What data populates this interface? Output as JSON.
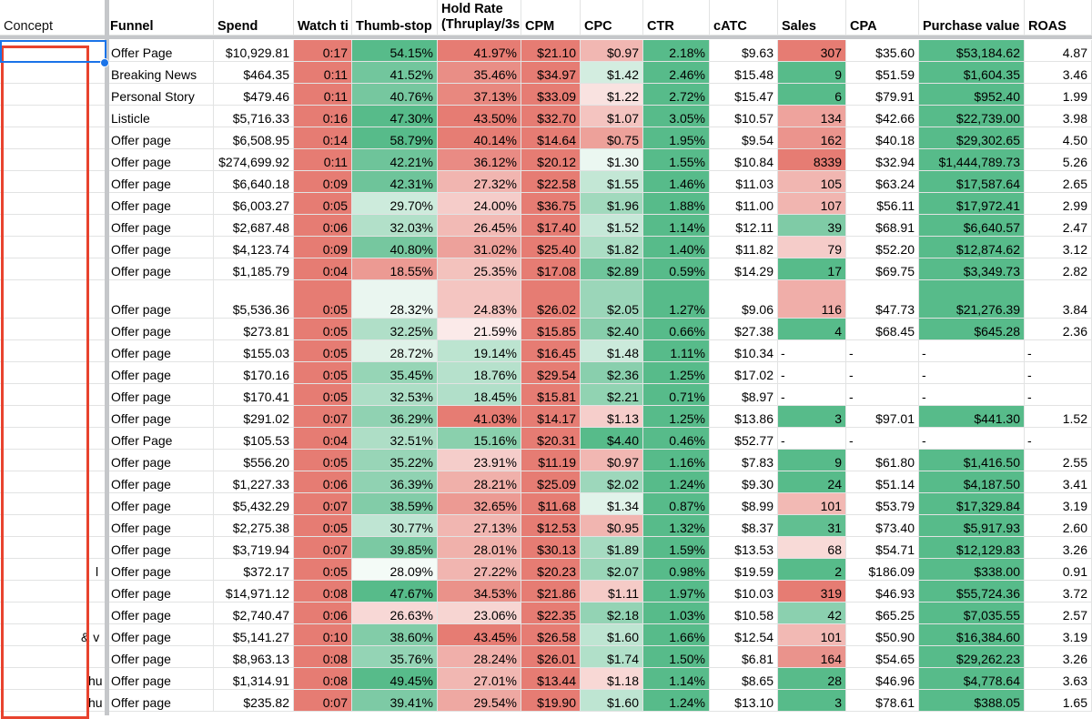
{
  "headers": [
    "Concept",
    "Funnel",
    "Spend",
    "Watch ti",
    "Thumb-stop",
    "Hold Rate\n(Thruplay/3s",
    "CPM",
    "CPC",
    "CTR",
    "cATC",
    "Sales",
    "CPA",
    "Purchase value",
    "ROAS"
  ],
  "concept_fragments": [
    {
      "row": 23,
      "text": "l"
    },
    {
      "row": 26,
      "text": "& v"
    },
    {
      "row": 28,
      "text": "hu"
    },
    {
      "row": 29,
      "text": "hu"
    }
  ],
  "rows": [
    [
      "Offer Page",
      "$10,929.81",
      "0:17",
      "54.15%",
      "41.97%",
      "$21.10",
      "$0.97",
      "2.18%",
      "$9.63",
      "307",
      "$35.60",
      "$53,184.62",
      "4.87"
    ],
    [
      "Breaking News",
      "$464.35",
      "0:11",
      "41.52%",
      "35.46%",
      "$34.97",
      "$1.42",
      "2.46%",
      "$15.48",
      "9",
      "$51.59",
      "$1,604.35",
      "3.46"
    ],
    [
      "Personal Story",
      "$479.46",
      "0:11",
      "40.76%",
      "37.13%",
      "$33.09",
      "$1.22",
      "2.72%",
      "$15.47",
      "6",
      "$79.91",
      "$952.40",
      "1.99"
    ],
    [
      "Listicle",
      "$5,716.33",
      "0:16",
      "47.30%",
      "43.50%",
      "$32.70",
      "$1.07",
      "3.05%",
      "$10.57",
      "134",
      "$42.66",
      "$22,739.00",
      "3.98"
    ],
    [
      "Offer page",
      "$6,508.95",
      "0:14",
      "58.79%",
      "40.14%",
      "$14.64",
      "$0.75",
      "1.95%",
      "$9.54",
      "162",
      "$40.18",
      "$29,302.65",
      "4.50"
    ],
    [
      "Offer page",
      "$274,699.92",
      "0:11",
      "42.21%",
      "36.12%",
      "$20.12",
      "$1.30",
      "1.55%",
      "$10.84",
      "8339",
      "$32.94",
      "$1,444,789.73",
      "5.26"
    ],
    [
      "Offer page",
      "$6,640.18",
      "0:09",
      "42.31%",
      "27.32%",
      "$22.58",
      "$1.55",
      "1.46%",
      "$11.03",
      "105",
      "$63.24",
      "$17,587.64",
      "2.65"
    ],
    [
      "Offer page",
      "$6,003.27",
      "0:05",
      "29.70%",
      "24.00%",
      "$36.75",
      "$1.96",
      "1.88%",
      "$11.00",
      "107",
      "$56.11",
      "$17,972.41",
      "2.99"
    ],
    [
      "Offer page",
      "$2,687.48",
      "0:06",
      "32.03%",
      "26.45%",
      "$17.40",
      "$1.52",
      "1.14%",
      "$12.11",
      "39",
      "$68.91",
      "$6,640.57",
      "2.47"
    ],
    [
      "Offer page",
      "$4,123.74",
      "0:09",
      "40.80%",
      "31.02%",
      "$25.40",
      "$1.82",
      "1.40%",
      "$11.82",
      "79",
      "$52.20",
      "$12,874.62",
      "3.12"
    ],
    [
      "Offer page",
      "$1,185.79",
      "0:04",
      "18.55%",
      "25.35%",
      "$17.08",
      "$2.89",
      "0.59%",
      "$14.29",
      "17",
      "$69.75",
      "$3,349.73",
      "2.82"
    ],
    [
      "Offer page",
      "$5,536.36",
      "0:05",
      "28.32%",
      "24.83%",
      "$26.02",
      "$2.05",
      "1.27%",
      "$9.06",
      "116",
      "$47.73",
      "$21,276.39",
      "3.84"
    ],
    [
      "Offer page",
      "$273.81",
      "0:05",
      "32.25%",
      "21.59%",
      "$15.85",
      "$2.40",
      "0.66%",
      "$27.38",
      "4",
      "$68.45",
      "$645.28",
      "2.36"
    ],
    [
      "Offer page",
      "$155.03",
      "0:05",
      "28.72%",
      "19.14%",
      "$16.45",
      "$1.48",
      "1.11%",
      "$10.34",
      "-",
      "-",
      "-",
      "-"
    ],
    [
      "Offer page",
      "$170.16",
      "0:05",
      "35.45%",
      "18.76%",
      "$29.54",
      "$2.36",
      "1.25%",
      "$17.02",
      "-",
      "-",
      "-",
      "-"
    ],
    [
      "Offer page",
      "$170.41",
      "0:05",
      "32.53%",
      "18.45%",
      "$15.81",
      "$2.21",
      "0.71%",
      "$8.97",
      "-",
      "-",
      "-",
      "-"
    ],
    [
      "Offer page",
      "$291.02",
      "0:07",
      "36.29%",
      "41.03%",
      "$14.17",
      "$1.13",
      "1.25%",
      "$13.86",
      "3",
      "$97.01",
      "$441.30",
      "1.52"
    ],
    [
      "Offer Page",
      "$105.53",
      "0:04",
      "32.51%",
      "15.16%",
      "$20.31",
      "$4.40",
      "0.46%",
      "$52.77",
      "-",
      "-",
      "-",
      "-"
    ],
    [
      "Offer page",
      "$556.20",
      "0:05",
      "35.22%",
      "23.91%",
      "$11.19",
      "$0.97",
      "1.16%",
      "$7.83",
      "9",
      "$61.80",
      "$1,416.50",
      "2.55"
    ],
    [
      "Offer page",
      "$1,227.33",
      "0:06",
      "36.39%",
      "28.21%",
      "$25.09",
      "$2.02",
      "1.24%",
      "$9.30",
      "24",
      "$51.14",
      "$4,187.50",
      "3.41"
    ],
    [
      "Offer page",
      "$5,432.29",
      "0:07",
      "38.59%",
      "32.65%",
      "$11.68",
      "$1.34",
      "0.87%",
      "$8.99",
      "101",
      "$53.79",
      "$17,329.84",
      "3.19"
    ],
    [
      "Offer page",
      "$2,275.38",
      "0:05",
      "30.77%",
      "27.13%",
      "$12.53",
      "$0.95",
      "1.32%",
      "$8.37",
      "31",
      "$73.40",
      "$5,917.93",
      "2.60"
    ],
    [
      "Offer page",
      "$3,719.94",
      "0:07",
      "39.85%",
      "28.01%",
      "$30.13",
      "$1.89",
      "1.59%",
      "$13.53",
      "68",
      "$54.71",
      "$12,129.83",
      "3.26"
    ],
    [
      "Offer page",
      "$372.17",
      "0:05",
      "28.09%",
      "27.22%",
      "$20.23",
      "$2.07",
      "0.98%",
      "$19.59",
      "2",
      "$186.09",
      "$338.00",
      "0.91"
    ],
    [
      "Offer page",
      "$14,971.12",
      "0:08",
      "47.67%",
      "34.53%",
      "$21.86",
      "$1.11",
      "1.97%",
      "$10.03",
      "319",
      "$46.93",
      "$55,724.36",
      "3.72"
    ],
    [
      "Offer page",
      "$2,740.47",
      "0:06",
      "26.63%",
      "23.06%",
      "$22.35",
      "$2.18",
      "1.03%",
      "$10.58",
      "42",
      "$65.25",
      "$7,035.55",
      "2.57"
    ],
    [
      "Offer page",
      "$5,141.27",
      "0:10",
      "38.60%",
      "43.45%",
      "$26.58",
      "$1.60",
      "1.66%",
      "$12.54",
      "101",
      "$50.90",
      "$16,384.60",
      "3.19"
    ],
    [
      "Offer page",
      "$8,963.13",
      "0:08",
      "35.76%",
      "28.24%",
      "$26.01",
      "$1.74",
      "1.50%",
      "$6.81",
      "164",
      "$54.65",
      "$29,262.23",
      "3.26"
    ],
    [
      "Offer page",
      "$1,314.91",
      "0:08",
      "49.45%",
      "27.01%",
      "$13.44",
      "$1.18",
      "1.14%",
      "$8.65",
      "28",
      "$46.96",
      "$4,778.64",
      "3.63"
    ],
    [
      "Offer page",
      "$235.82",
      "0:07",
      "39.41%",
      "29.54%",
      "$19.90",
      "$1.60",
      "1.24%",
      "$13.10",
      "3",
      "$78.61",
      "$388.05",
      "1.65"
    ]
  ],
  "colors": {
    "good": "#57bb8a",
    "bad": "#e67c73",
    "neutral": "#ffffff",
    "selection_red": "#e8432e",
    "selection_blue": "#1a73e8",
    "frozen_divider": "#c5c7ca"
  }
}
